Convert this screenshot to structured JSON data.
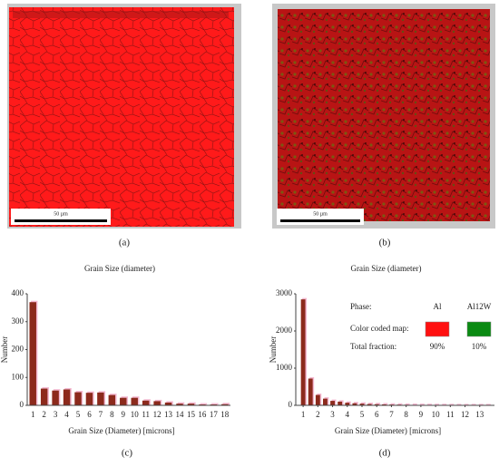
{
  "panels": [
    "(a)",
    "(b)",
    "(c)",
    "(d)"
  ],
  "scale_bars": [
    "50 µm",
    "50 µm"
  ],
  "chart_data": [
    {
      "type": "bar",
      "title": "Grain Size (diameter)",
      "x_label": "Grain Size (Diameter) [microns]",
      "y_label": "Number",
      "categories": [
        "1",
        "2",
        "3",
        "4",
        "5",
        "6",
        "7",
        "8",
        "9",
        "10",
        "11",
        "12",
        "13",
        "14",
        "15",
        "16",
        "17",
        "18"
      ],
      "values": [
        370,
        60,
        53,
        57,
        47,
        45,
        46,
        37,
        27,
        27,
        17,
        15,
        10,
        6,
        6,
        3,
        3,
        4
      ],
      "color": "#8c2a1c",
      "ylim": [
        0,
        400
      ],
      "yticks": [
        0,
        100,
        200,
        300,
        400
      ]
    },
    {
      "type": "bar",
      "title": "Grain Size (diameter)",
      "x_label": "Grain Size (Diameter) [microns]",
      "y_label": "Number",
      "x": [
        1,
        1.5,
        2,
        2.5,
        3,
        3.5,
        4,
        4.5,
        5,
        5.5,
        6,
        6.5,
        7,
        7.5,
        8,
        8.5,
        9,
        9.5,
        10,
        10.5,
        11,
        11.5,
        12,
        12.5,
        13,
        13.5
      ],
      "values": [
        2850,
        720,
        280,
        180,
        120,
        100,
        70,
        55,
        45,
        35,
        30,
        25,
        20,
        18,
        15,
        12,
        10,
        8,
        7,
        6,
        5,
        4,
        3,
        3,
        2,
        2
      ],
      "color": "#8c2a1c",
      "xlim": [
        0.5,
        14
      ],
      "xticks": [
        1,
        2,
        3,
        4,
        5,
        6,
        7,
        8,
        9,
        10,
        11,
        12,
        13
      ],
      "ylim": [
        0,
        3000
      ],
      "yticks": [
        0,
        1000,
        2000,
        3000
      ]
    }
  ],
  "phase_table": {
    "labels": [
      "Phase:",
      "Color coded map:",
      "Total fraction:"
    ],
    "phases": [
      {
        "name": "Al",
        "color": "#ff1010",
        "fraction": "90%"
      },
      {
        "name": "Al12W",
        "color": "#0a8a12",
        "fraction": "10%"
      }
    ]
  }
}
